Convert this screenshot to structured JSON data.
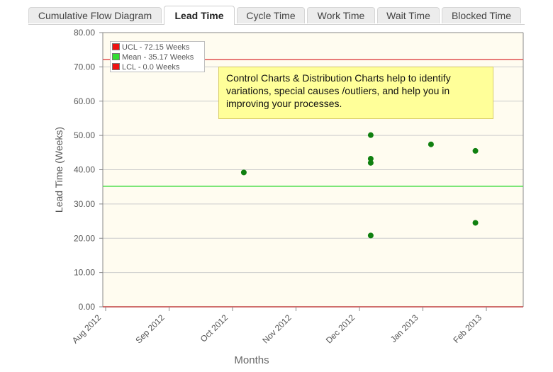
{
  "tabs": [
    {
      "label": "Cumulative Flow Diagram",
      "active": false
    },
    {
      "label": "Lead Time",
      "active": true
    },
    {
      "label": "Cycle Time",
      "active": false
    },
    {
      "label": "Work Time",
      "active": false
    },
    {
      "label": "Wait Time",
      "active": false
    },
    {
      "label": "Blocked Time",
      "active": false
    }
  ],
  "note": "Control Charts & Distribution Charts help to identify variations, special causes /outliers, and help you in improving your processes.",
  "legend": [
    {
      "label": "UCL - 72.15 Weeks",
      "color": "#ee1111"
    },
    {
      "label": "Mean - 35.17 Weeks",
      "color": "#33dd33"
    },
    {
      "label": "LCL - 0.0 Weeks",
      "color": "#ee1111"
    }
  ],
  "chart_data": {
    "type": "scatter",
    "title": "",
    "xlabel": "Months",
    "ylabel": "Lead Time (Weeks)",
    "ylim": [
      0,
      80
    ],
    "yticks": [
      "0.00",
      "10.00",
      "20.00",
      "30.00",
      "40.00",
      "50.00",
      "60.00",
      "70.00",
      "80.00"
    ],
    "yticks_values": [
      0,
      10,
      20,
      30,
      40,
      50,
      60,
      70,
      80
    ],
    "x_categories": [
      "Aug 2012",
      "Sep 2012",
      "Oct 2012",
      "Nov 2012",
      "Dec 2012",
      "Jan 2013",
      "Feb 2013"
    ],
    "xlim_months": [
      0,
      7
    ],
    "points": [
      {
        "x": 2.2,
        "y": 39.2
      },
      {
        "x": 4.2,
        "y": 50.1
      },
      {
        "x": 4.2,
        "y": 43.2
      },
      {
        "x": 4.2,
        "y": 42.0
      },
      {
        "x": 4.2,
        "y": 20.8
      },
      {
        "x": 5.15,
        "y": 47.4
      },
      {
        "x": 5.85,
        "y": 45.5
      },
      {
        "x": 5.85,
        "y": 24.5
      }
    ],
    "reference_lines": [
      {
        "name": "UCL",
        "y": 72.15,
        "color": "#e05050"
      },
      {
        "name": "Mean",
        "y": 35.17,
        "color": "#44dd44"
      },
      {
        "name": "LCL",
        "y": 0.0,
        "color": "#c04040"
      }
    ],
    "colors": {
      "plot_bg": "#fffcf0",
      "point": "#108010",
      "grid": "#cccccc"
    }
  }
}
